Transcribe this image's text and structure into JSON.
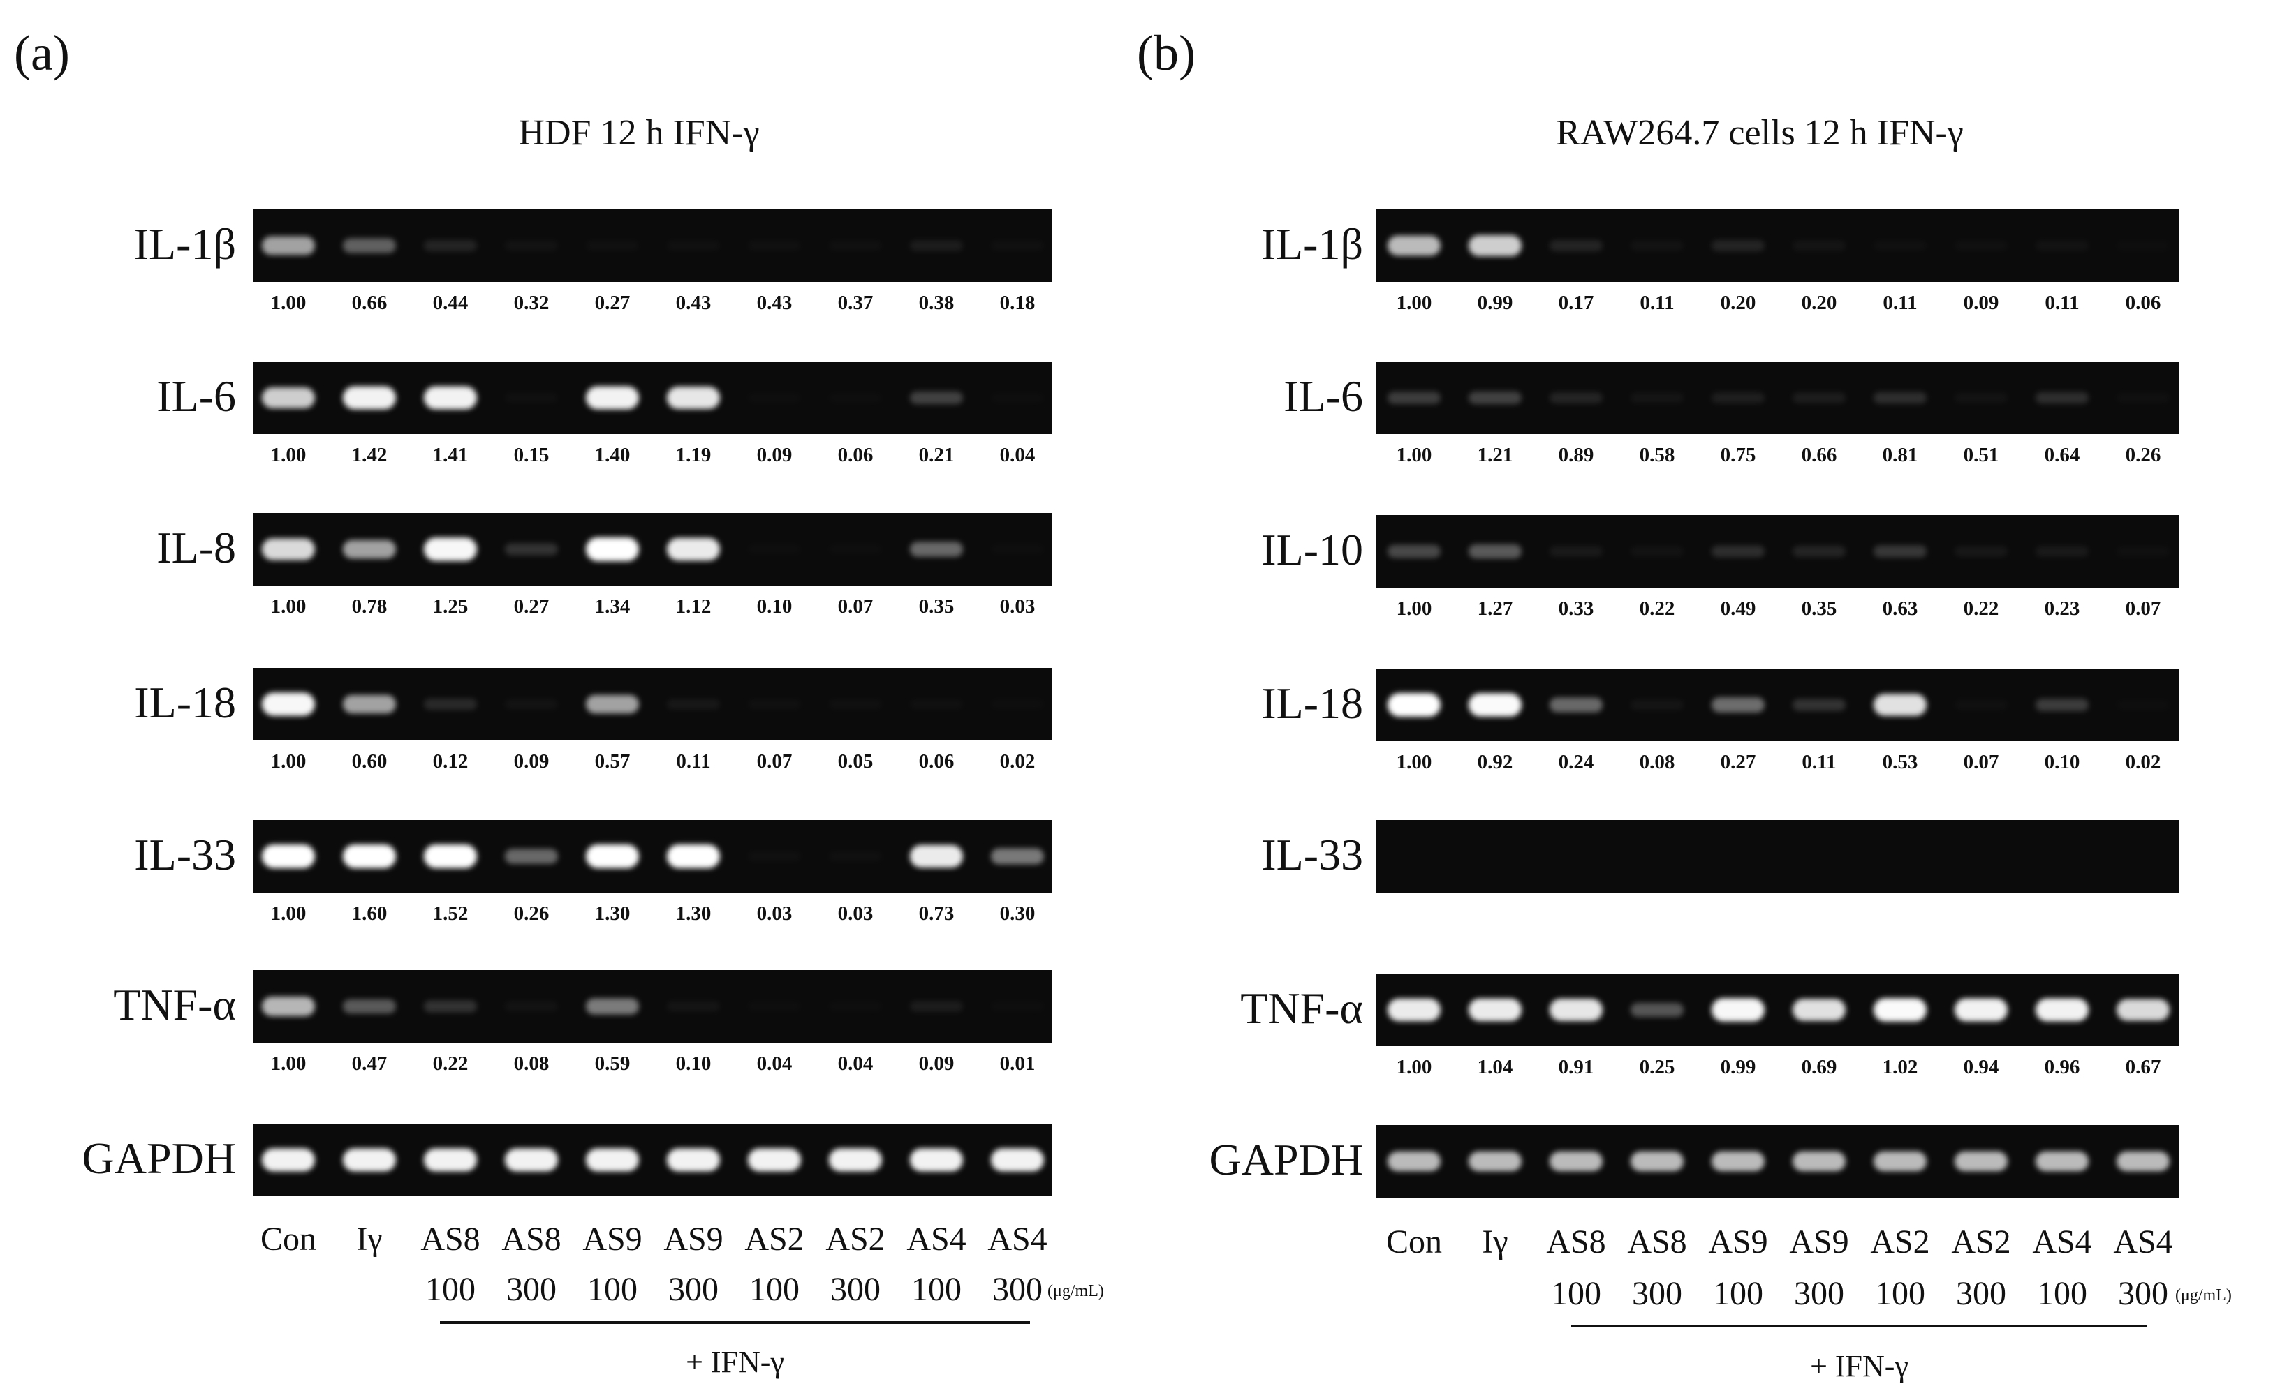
{
  "panels": [
    {
      "id": "a",
      "letter": "(a)",
      "title": "HDF 12 h IFN-γ",
      "lanes": [
        "Con",
        "Iγ",
        "AS8",
        "AS8",
        "AS9",
        "AS9",
        "AS2",
        "AS2",
        "AS4",
        "AS4"
      ],
      "doses": [
        "",
        "",
        "100",
        "300",
        "100",
        "300",
        "100",
        "300",
        "100",
        "300"
      ],
      "dose_unit": "(μg/mL)",
      "treatment": "+ IFN-γ",
      "rows": [
        {
          "gene": "IL-1β",
          "band_color": "#ffffff",
          "values": [
            "1.00",
            "0.66",
            "0.44",
            "0.32",
            "0.27",
            "0.43",
            "0.43",
            "0.37",
            "0.38",
            "0.18"
          ],
          "intensity": [
            0.62,
            0.35,
            0.1,
            0.03,
            0.02,
            0.02,
            0.02,
            0.02,
            0.07,
            0.02
          ]
        },
        {
          "gene": "IL-6",
          "band_color": "#ffffff",
          "values": [
            "1.00",
            "1.42",
            "1.41",
            "0.15",
            "1.40",
            "1.19",
            "0.09",
            "0.06",
            "0.21",
            "0.04"
          ],
          "intensity": [
            0.8,
            0.95,
            0.95,
            0.02,
            0.95,
            0.9,
            0.01,
            0.01,
            0.22,
            0.01
          ]
        },
        {
          "gene": "IL-8",
          "band_color": "#ffffff",
          "values": [
            "1.00",
            "0.78",
            "1.25",
            "0.27",
            "1.34",
            "1.12",
            "0.10",
            "0.07",
            "0.35",
            "0.03"
          ],
          "intensity": [
            0.85,
            0.62,
            0.97,
            0.16,
            1.0,
            0.92,
            0.01,
            0.01,
            0.38,
            0.01
          ]
        },
        {
          "gene": "IL-18",
          "band_color": "#ffffff",
          "values": [
            "1.00",
            "0.60",
            "0.12",
            "0.09",
            "0.57",
            "0.11",
            "0.07",
            "0.05",
            "0.06",
            "0.02"
          ],
          "intensity": [
            0.97,
            0.62,
            0.12,
            0.03,
            0.62,
            0.05,
            0.02,
            0.02,
            0.02,
            0.01
          ]
        },
        {
          "gene": "IL-33",
          "band_color": "#ffffff",
          "values": [
            "1.00",
            "1.60",
            "1.52",
            "0.26",
            "1.30",
            "1.30",
            "0.03",
            "0.03",
            "0.73",
            "0.30"
          ],
          "intensity": [
            1.0,
            1.0,
            1.0,
            0.38,
            1.0,
            1.0,
            0.02,
            0.02,
            0.92,
            0.45
          ]
        },
        {
          "gene": "TNF-α",
          "band_color": "#ffffff",
          "values": [
            "1.00",
            "0.47",
            "0.22",
            "0.08",
            "0.59",
            "0.10",
            "0.04",
            "0.04",
            "0.09",
            "0.01"
          ],
          "intensity": [
            0.7,
            0.32,
            0.16,
            0.03,
            0.46,
            0.04,
            0.01,
            0.01,
            0.07,
            0.01
          ]
        },
        {
          "gene": "GAPDH",
          "band_color": "#ffffff",
          "values": [],
          "intensity": [
            0.95,
            0.95,
            0.95,
            0.95,
            0.95,
            0.95,
            0.95,
            0.95,
            0.95,
            0.95
          ]
        }
      ]
    },
    {
      "id": "b",
      "letter": "(b)",
      "title": "RAW264.7 cells 12 h IFN-γ",
      "lanes": [
        "Con",
        "Iγ",
        "AS8",
        "AS8",
        "AS9",
        "AS9",
        "AS2",
        "AS2",
        "AS4",
        "AS4"
      ],
      "doses": [
        "",
        "",
        "100",
        "300",
        "100",
        "300",
        "100",
        "300",
        "100",
        "300"
      ],
      "dose_unit": "(μg/mL)",
      "treatment": "+ IFN-γ",
      "rows": [
        {
          "gene": "IL-1β",
          "band_color": "#ffffff",
          "values": [
            "1.00",
            "0.99",
            "0.17",
            "0.11",
            "0.20",
            "0.20",
            "0.11",
            "0.09",
            "0.11",
            "0.06"
          ],
          "intensity": [
            0.72,
            0.8,
            0.1,
            0.03,
            0.1,
            0.04,
            0.02,
            0.02,
            0.03,
            0.01
          ]
        },
        {
          "gene": "IL-6",
          "band_color": "#ffffff",
          "values": [
            "1.00",
            "1.21",
            "0.89",
            "0.58",
            "0.75",
            "0.66",
            "0.81",
            "0.51",
            "0.64",
            "0.26"
          ],
          "intensity": [
            0.2,
            0.22,
            0.1,
            0.04,
            0.08,
            0.07,
            0.14,
            0.03,
            0.14,
            0.02
          ]
        },
        {
          "gene": "IL-10",
          "band_color": "#ffffff",
          "values": [
            "1.00",
            "1.27",
            "0.33",
            "0.22",
            "0.49",
            "0.35",
            "0.63",
            "0.22",
            "0.23",
            "0.07"
          ],
          "intensity": [
            0.25,
            0.32,
            0.06,
            0.03,
            0.14,
            0.1,
            0.18,
            0.05,
            0.06,
            0.02
          ]
        },
        {
          "gene": "IL-18",
          "band_color": "#ffffff",
          "values": [
            "1.00",
            "0.92",
            "0.24",
            "0.08",
            "0.27",
            "0.11",
            "0.53",
            "0.07",
            "0.10",
            "0.02"
          ],
          "intensity": [
            1.0,
            0.98,
            0.38,
            0.04,
            0.4,
            0.16,
            0.88,
            0.02,
            0.2,
            0.01
          ]
        },
        {
          "gene": "IL-33",
          "band_color": "#ffffff",
          "values": [],
          "intensity": [
            0,
            0,
            0,
            0,
            0,
            0,
            0,
            0,
            0,
            0
          ]
        },
        {
          "gene": "TNF-α",
          "band_color": "#ffffff",
          "values": [
            "1.00",
            "1.04",
            "0.91",
            "0.25",
            "0.99",
            "0.69",
            "1.02",
            "0.94",
            "0.96",
            "0.67"
          ],
          "intensity": [
            0.92,
            0.92,
            0.9,
            0.3,
            0.97,
            0.88,
            0.98,
            0.95,
            0.95,
            0.85
          ]
        },
        {
          "gene": "GAPDH",
          "band_color": "#ffffff",
          "values": [],
          "intensity": [
            0.72,
            0.72,
            0.72,
            0.72,
            0.72,
            0.72,
            0.72,
            0.72,
            0.72,
            0.72
          ]
        }
      ]
    }
  ]
}
